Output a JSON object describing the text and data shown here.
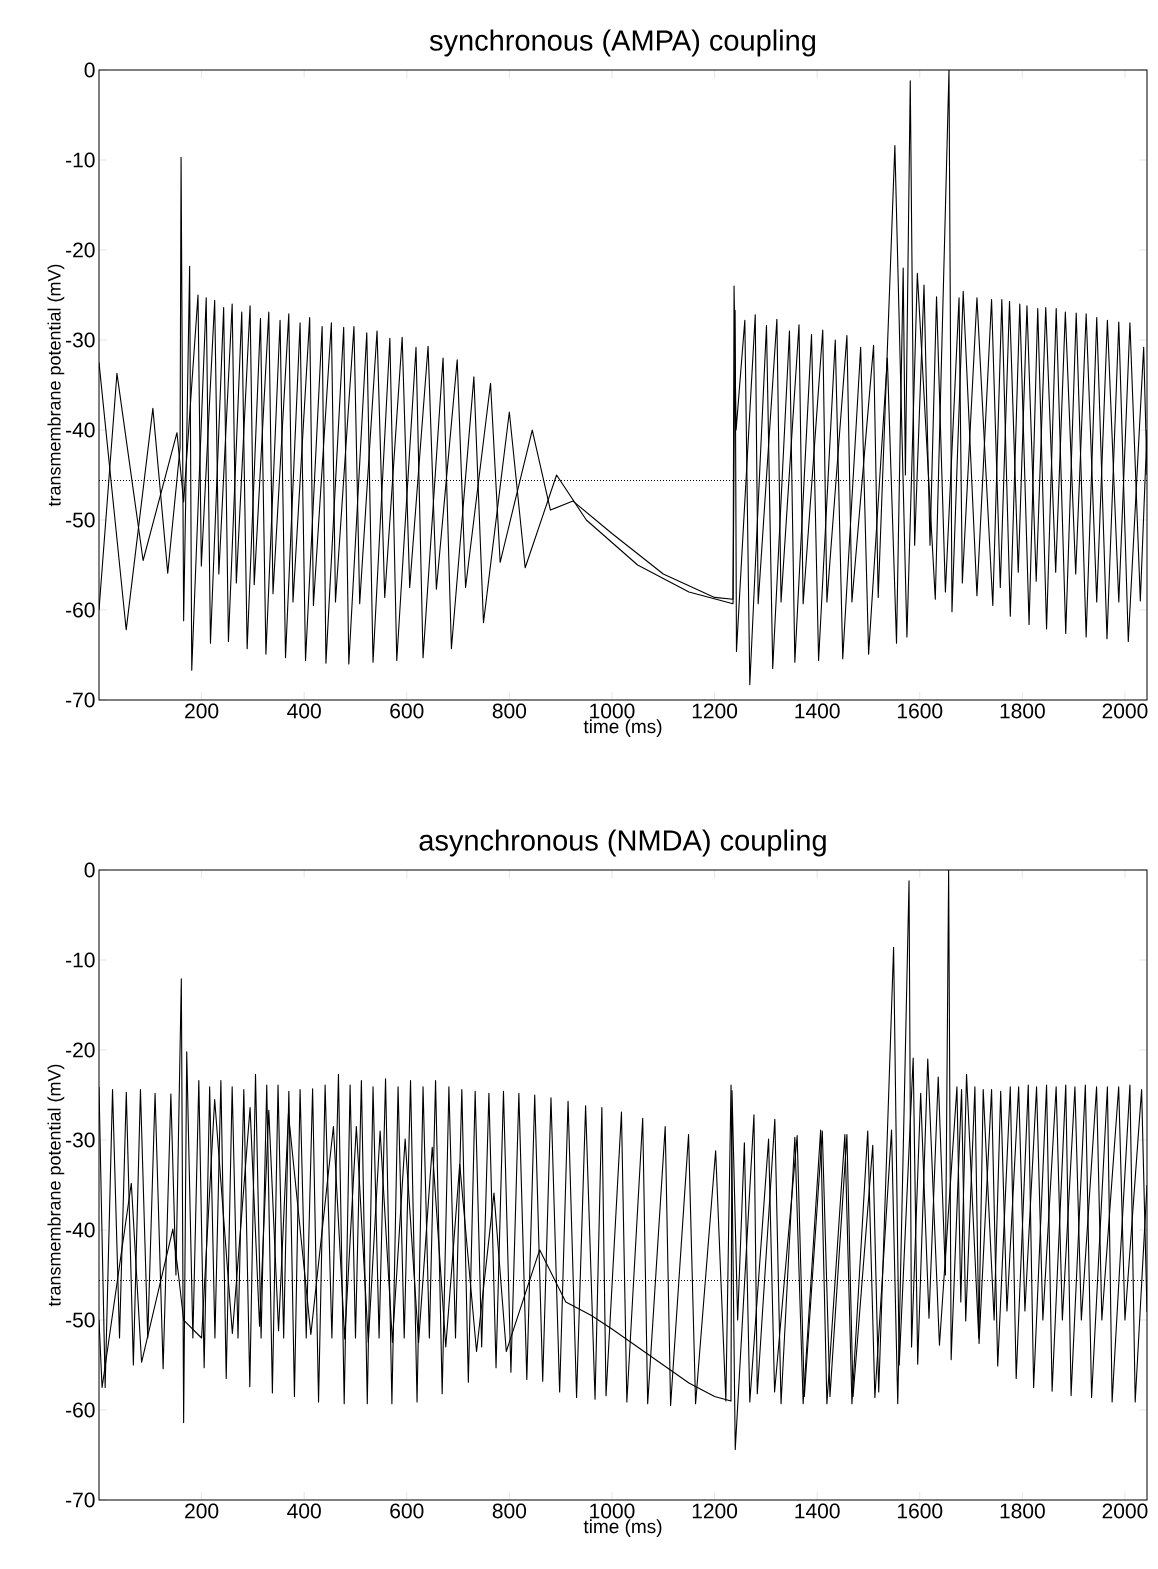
{
  "chart_data": [
    {
      "type": "line",
      "title": "synchronous (AMPA) coupling",
      "xlabel": "time (ms)",
      "ylabel": "transmembrane potential (mV)",
      "xlim": [
        0,
        2043
      ],
      "ylim": [
        -70,
        0
      ],
      "xticks": [
        200,
        400,
        600,
        800,
        1000,
        1200,
        1400,
        1600,
        1800,
        2000
      ],
      "yticks": [
        -70,
        -60,
        -50,
        -40,
        -30,
        -20,
        -10,
        0
      ],
      "marker": "none",
      "line_style": "solid",
      "ref_lines": [
        {
          "axis": "y",
          "value": -45.6,
          "line_style": "dotted",
          "color": "#000000"
        }
      ],
      "series": [
        {
          "color": "#000000",
          "x": [
            0,
            53,
            105,
            134,
            158,
            160,
            165,
            176.7,
            180.8,
            209,
            217.3,
            243,
            252.3,
            278.3,
            288.8,
            314.8,
            325.4,
            353,
            363.6,
            392,
            402.6,
            435,
            442.4,
            477,
            487,
            522,
            534.2,
            567,
            580.5,
            618,
            631.7,
            670.7,
            687,
            730.8,
            749.5,
            799.9,
            830.8,
            892,
            950,
            1050,
            1150,
            1236,
            1240,
            1242.7,
            1279.3,
            1285,
            1321.5,
            1329.6,
            1364.6,
            1372.7,
            1410.9,
            1419,
            1458,
            1467.8,
            1510,
            1519,
            1551.5,
            1575,
            1595.3,
            1630.3,
            1657,
            1662.8,
            1684.7,
            1711.5,
            1740,
            1757,
            1775,
            1792,
            1809,
            1827,
            1845.6,
            1865,
            1883.8,
            1904,
            1924.4,
            1945,
            1965.8,
            1988,
            2009.7,
            2030,
            2043
          ],
          "values": [
            -32.5,
            -62.2,
            -37.6,
            -55.9,
            -42,
            -9.7,
            -61.2,
            -21.8,
            -66.7,
            -25.3,
            -63.7,
            -26.4,
            -63.5,
            -26.9,
            -64.3,
            -27.6,
            -64.9,
            -27.8,
            -65.3,
            -28.1,
            -65.6,
            -28.5,
            -65.9,
            -28.6,
            -66,
            -29.2,
            -65.8,
            -29.8,
            -65.6,
            -30.8,
            -65.3,
            -32,
            -64.3,
            -34.1,
            -61.4,
            -38,
            -55.3,
            -45,
            -50,
            -55,
            -58,
            -59.3,
            -26.7,
            -64.6,
            -27.2,
            -59.3,
            -27.7,
            -59.1,
            -28.3,
            -59.3,
            -28.9,
            -59.1,
            -29.5,
            -59.1,
            -30.6,
            -58.6,
            -8.4,
            -63,
            -22.6,
            -58.8,
            0,
            -60.2,
            -24.6,
            -58.4,
            -25.5,
            -57.5,
            -25.7,
            -55.8,
            -26.2,
            -56.8,
            -26.4,
            -55.8,
            -26.9,
            -56,
            -27.1,
            -59.1,
            -27.8,
            -59.1,
            -28.1,
            -59,
            -40
          ]
        },
        {
          "color": "#000000",
          "x": [
            0,
            35,
            86,
            152,
            165,
            193,
            199.5,
            225.5,
            233.6,
            259.6,
            267.7,
            294.5,
            302.6,
            331,
            339.2,
            370,
            378.2,
            410.7,
            418,
            453,
            461,
            497,
            508.2,
            542,
            557,
            591,
            605.7,
            641.5,
            657.7,
            698.3,
            714.6,
            763.3,
            782,
            844.6,
            880,
            924,
            1000,
            1100,
            1200,
            1236,
            1238,
            1242,
            1259,
            1268.7,
            1301.2,
            1313.4,
            1346,
            1356.5,
            1389,
            1402.8,
            1435.3,
            1449.9,
            1484.8,
            1500.3,
            1536.8,
            1554.7,
            1567.7,
            1572,
            1581.5,
            1590,
            1608.3,
            1620,
            1632.7,
            1650,
            1676.6,
            1683,
            1711.5,
            1742.4,
            1760,
            1776.5,
            1795,
            1813.1,
            1830,
            1847.2,
            1866,
            1884.6,
            1905,
            1924.4,
            1945,
            1965,
            1988,
            2006.5,
            2036.5,
            2043
          ],
          "values": [
            -60,
            -33.7,
            -54.5,
            -40.3,
            -48,
            -25,
            -55.1,
            -25.6,
            -56,
            -26,
            -57,
            -26.2,
            -57.2,
            -26.9,
            -58.2,
            -27.1,
            -59.1,
            -27.5,
            -59.5,
            -28.1,
            -59.1,
            -28.5,
            -59.3,
            -29,
            -58.6,
            -29.7,
            -57.5,
            -30.7,
            -57.7,
            -32.2,
            -57.5,
            -34.8,
            -54.7,
            -40,
            -48.9,
            -47.9,
            -51.5,
            -56,
            -58.6,
            -58.8,
            -24,
            -40,
            -27.8,
            -68.3,
            -28.4,
            -66.5,
            -29,
            -65.8,
            -29.4,
            -65.6,
            -30,
            -65.4,
            -30.8,
            -64.9,
            -32,
            -63.7,
            -22,
            -45,
            -1.2,
            -52.8,
            -23.9,
            -52.8,
            -25.2,
            -58,
            -25.3,
            -57,
            -25.3,
            -59.5,
            -25.5,
            -60.7,
            -26,
            -61.6,
            -26.5,
            -62.1,
            -26.5,
            -62.6,
            -27,
            -63,
            -27.5,
            -63.2,
            -28,
            -63.5,
            -30.8,
            -45
          ]
        }
      ]
    },
    {
      "type": "line",
      "title": "asynchronous (NMDA) coupling",
      "xlabel": "time (ms)",
      "ylabel": "transmembrane potential (mV)",
      "xlim": [
        0,
        2043
      ],
      "ylim": [
        -70,
        0
      ],
      "xticks": [
        200,
        400,
        600,
        800,
        1000,
        1200,
        1400,
        1600,
        1800,
        2000
      ],
      "yticks": [
        -70,
        -60,
        -50,
        -40,
        -30,
        -20,
        -10,
        0
      ],
      "marker": "none",
      "line_style": "solid",
      "ref_lines": [
        {
          "axis": "y",
          "value": -45.6,
          "line_style": "dotted",
          "color": "#000000"
        }
      ],
      "series": [
        {
          "color": "#000000",
          "x": [
            0,
            12,
            26.4,
            40,
            53.2,
            67,
            80.8,
            95,
            109.3,
            125,
            140.1,
            150,
            160.5,
            165,
            171,
            183,
            194.6,
            205,
            215.7,
            226,
            237.6,
            248,
            259.6,
            271,
            282.3,
            294,
            305.1,
            316,
            327,
            338,
            349,
            360,
            370.1,
            381,
            392,
            404,
            416.4,
            428,
            440.8,
            454,
            466.8,
            478,
            489.5,
            500,
            511.5,
            523,
            534.2,
            546,
            558.6,
            571,
            583,
            595,
            607.3,
            620,
            631.7,
            644,
            656.1,
            669,
            682.1,
            695,
            707.3,
            720,
            733.3,
            746,
            760.1,
            774,
            788.5,
            803,
            818.5,
            834,
            849.4,
            865,
            881.1,
            898,
            914.4,
            931,
            948.6,
            967,
            980.3,
            988.4,
            1018.5,
            1029,
            1059.9,
            1069.6,
            1103.8,
            1114.3,
            1149.3,
            1163,
            1202.1,
            1222,
            1232.1,
            1240.3,
            1276.8,
            1283.3,
            1317.5,
            1329.6,
            1356.5,
            1372.7,
            1406.8,
            1419,
            1454,
            1467.8,
            1498.6,
            1512.5,
            1545,
            1557.1,
            1579.1,
            1584,
            1601.8,
            1618,
            1636,
            1650,
            1656.3,
            1661.2,
            1681.5,
            1689.6,
            1707.5,
            1715.6,
            1740,
            1752,
            1776.5,
            1788,
            1811.5,
            1822,
            1847.2,
            1858,
            1884.6,
            1895,
            1922.8,
            1935,
            1965.8,
            1975,
            2009.7,
            2020,
            2043
          ],
          "values": [
            -24.1,
            -57.5,
            -24.4,
            -52,
            -24.7,
            -55,
            -24.4,
            -52,
            -24.8,
            -55.4,
            -24.9,
            -45,
            -12.1,
            -61.4,
            -20.2,
            -52,
            -23.4,
            -55.3,
            -24.1,
            -52,
            -23.4,
            -56.5,
            -24.1,
            -52,
            -24.4,
            -57.4,
            -22.7,
            -52,
            -23.9,
            -58.1,
            -23.9,
            -52,
            -24.6,
            -58.5,
            -24.4,
            -52,
            -24.3,
            -59.1,
            -23.9,
            -52,
            -22.7,
            -59.3,
            -23.9,
            -52,
            -23.4,
            -59.3,
            -24.1,
            -52,
            -23.2,
            -59.3,
            -24.1,
            -52,
            -23.4,
            -59.1,
            -24.1,
            -52,
            -23.4,
            -58.2,
            -24.1,
            -52,
            -24.4,
            -56.9,
            -24.6,
            -53,
            -24.8,
            -55.3,
            -24.6,
            -55.8,
            -24.8,
            -56.6,
            -25,
            -56.8,
            -25.3,
            -58,
            -25.7,
            -58.6,
            -26.2,
            -58.8,
            -26.4,
            -58.4,
            -26.9,
            -59.1,
            -27.6,
            -59.3,
            -28.5,
            -59.5,
            -29.4,
            -59.3,
            -31.2,
            -59,
            -23.9,
            -64.4,
            -27.2,
            -58.2,
            -27.7,
            -59.3,
            -29.7,
            -59.3,
            -28.9,
            -59.3,
            -29.4,
            -59.3,
            -29,
            -58.6,
            -28.9,
            -59.3,
            -1.2,
            -53,
            -24.8,
            -49.8,
            -23,
            -45,
            0,
            -54.4,
            -24.4,
            -50.1,
            -24.1,
            -52.6,
            -24.4,
            -55.1,
            -24.1,
            -56.5,
            -23.9,
            -57.5,
            -23.9,
            -57.9,
            -23.9,
            -58.4,
            -23.9,
            -58.6,
            -24.1,
            -59.1,
            -23.9,
            -59.1,
            -35
          ]
        },
        {
          "color": "#000000",
          "x": [
            0,
            6,
            63,
            83,
            144,
            155,
            165,
            200,
            225.5,
            260,
            294.5,
            313,
            331,
            350,
            369.3,
            413,
            457,
            479,
            501.7,
            525,
            548,
            572,
            596.8,
            623,
            649.6,
            676,
            703.2,
            736,
            770,
            794,
            859,
            910,
            960,
            1000,
            1050,
            1100,
            1150,
            1200,
            1232,
            1234,
            1245,
            1258.1,
            1268.7,
            1305.3,
            1317,
            1361,
            1375,
            1410,
            1425,
            1458,
            1470,
            1508.4,
            1520,
            1549,
            1560,
            1587.2,
            1596,
            1615.6,
            1638.4,
            1672.5,
            1680,
            1691.2,
            1715,
            1723.7,
            1745,
            1757.8,
            1770,
            1792.8,
            1805,
            1827.7,
            1840,
            1865.9,
            1878,
            1902.5,
            1915,
            1944.7,
            1955,
            1987.8,
            2000,
            2032.5,
            2043
          ],
          "values": [
            -50,
            -57.5,
            -34.8,
            -54.7,
            -39.9,
            -45,
            -50,
            -52,
            -25.5,
            -51.5,
            -26.4,
            -50.7,
            -26.7,
            -51.2,
            -27.1,
            -51.6,
            -28.5,
            -52.1,
            -28.5,
            -52.5,
            -29,
            -52.5,
            -29.9,
            -52.5,
            -30.8,
            -53,
            -32.7,
            -53.5,
            -35.9,
            -53.5,
            -42.2,
            -48,
            -49.5,
            -51,
            -53,
            -55,
            -57,
            -58.5,
            -59,
            -24.5,
            -50,
            -30.3,
            -59.1,
            -29.9,
            -58,
            -29.5,
            -58.5,
            -29,
            -58.5,
            -29.4,
            -58.5,
            -30.6,
            -58,
            -8.6,
            -55,
            -20.9,
            -54.9,
            -21,
            -52.8,
            -24.1,
            -48,
            -22.7,
            -52,
            -24.4,
            -50,
            -24.6,
            -49,
            -24.1,
            -49,
            -24.1,
            -50,
            -24.1,
            -50,
            -24.1,
            -50,
            -24.1,
            -50,
            -24.1,
            -50,
            -24.4,
            -49.1
          ]
        }
      ]
    }
  ]
}
